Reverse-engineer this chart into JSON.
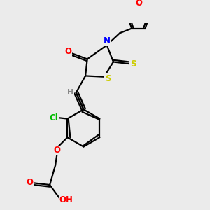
{
  "bg_color": "#ebebeb",
  "bond_color": "#000000",
  "atom_colors": {
    "O": "#ff0000",
    "N": "#0000ff",
    "S": "#cccc00",
    "Cl": "#00bb00",
    "H": "#888888",
    "C": "#000000"
  },
  "line_width": 1.6,
  "figsize": [
    3.0,
    3.0
  ],
  "dpi": 100
}
